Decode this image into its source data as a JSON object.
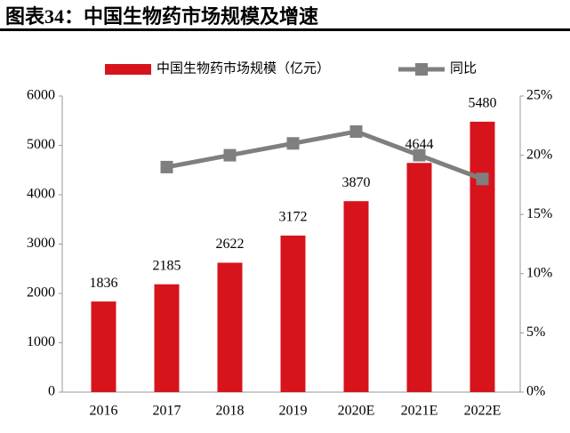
{
  "chart_data": {
    "type": "bar",
    "title": "图表34：中国生物药市场规模及增速",
    "categories": [
      "2016",
      "2017",
      "2018",
      "2019",
      "2020E",
      "2021E",
      "2022E"
    ],
    "series": [
      {
        "name": "中国生物药市场规模（亿元）",
        "type": "bar",
        "color": "#d7141c",
        "values": [
          1836,
          2185,
          2622,
          3172,
          3870,
          4644,
          5480
        ]
      },
      {
        "name": "同比",
        "type": "line",
        "axis": "y2",
        "color": "#7f7f7f",
        "values": [
          null,
          19,
          20,
          21,
          22,
          20,
          18
        ]
      }
    ],
    "ylim": [
      0,
      6000
    ],
    "yticks": [
      0,
      1000,
      2000,
      3000,
      4000,
      5000,
      6000
    ],
    "y2lim": [
      0,
      25
    ],
    "y2ticks": [
      {
        "value": 0,
        "label": "0%"
      },
      {
        "value": 5,
        "label": "5%"
      },
      {
        "value": 10,
        "label": "10%"
      },
      {
        "value": 15,
        "label": "15%"
      },
      {
        "value": 20,
        "label": "20%"
      },
      {
        "value": 25,
        "label": "25%"
      }
    ]
  }
}
